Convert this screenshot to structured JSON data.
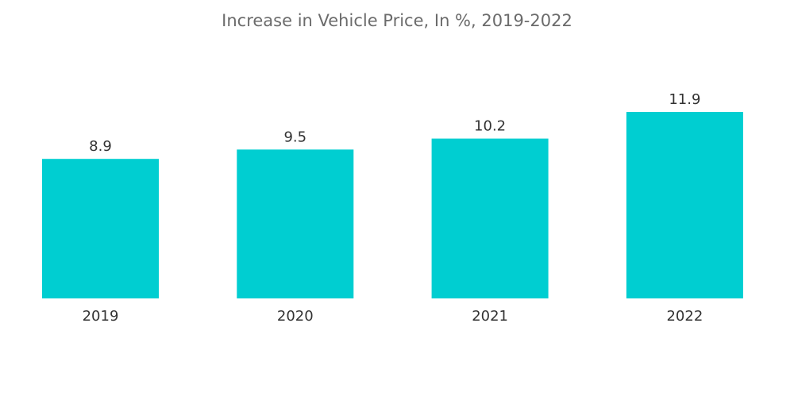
{
  "chart_data": {
    "type": "bar",
    "title": "Increase in Vehicle Price, In %, 2019-2022",
    "categories": [
      "2019",
      "2020",
      "2021",
      "2022"
    ],
    "values": [
      8.9,
      9.5,
      10.2,
      11.9
    ],
    "value_labels": [
      "8.9",
      "9.5",
      "10.2",
      "11.9"
    ],
    "xlabel": "",
    "ylabel": "",
    "ylim": [
      0,
      11.9
    ],
    "grid": false,
    "legend": "none",
    "bar_color": "#00ced1"
  }
}
